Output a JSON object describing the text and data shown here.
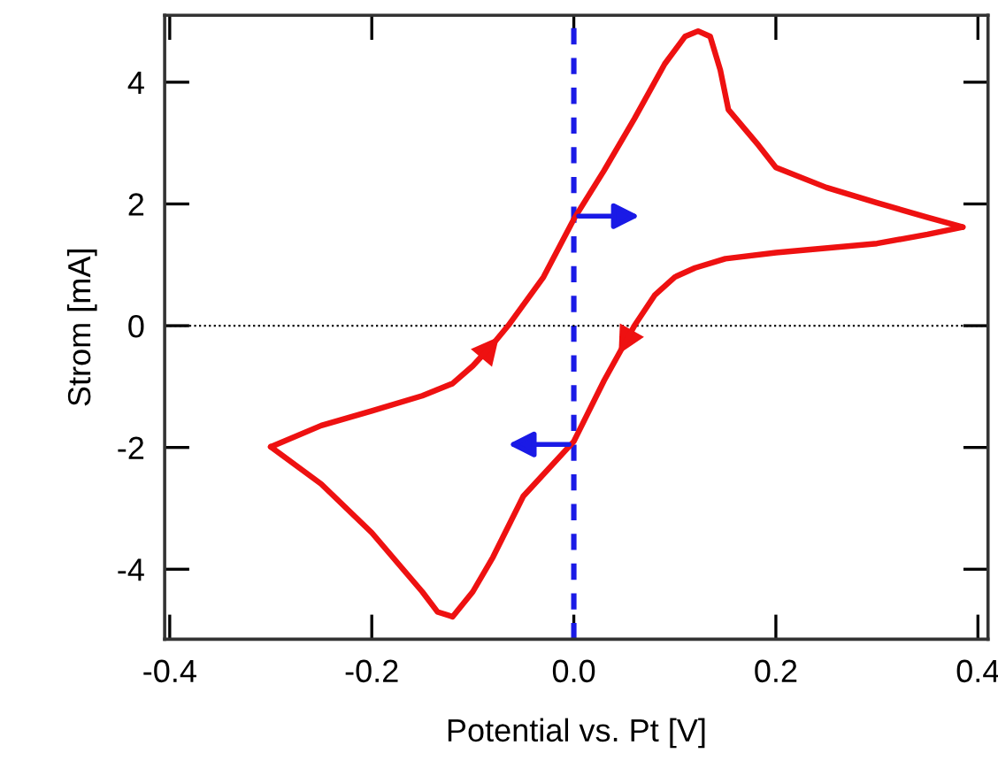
{
  "chart_data": {
    "type": "line",
    "xlabel": "Potential vs. Pt [V]",
    "ylabel": "Strom [mA]",
    "xlim": [
      -0.405,
      0.41
    ],
    "ylim": [
      -5.15,
      5.1
    ],
    "xticks": [
      {
        "value": -0.4,
        "label": "-0.4"
      },
      {
        "value": -0.2,
        "label": "-0.2"
      },
      {
        "value": 0,
        "label": "0.0"
      },
      {
        "value": 0.2,
        "label": "0.2"
      },
      {
        "value": 0.4,
        "label": "0.4"
      }
    ],
    "yticks": [
      {
        "value": -4,
        "label": "-4"
      },
      {
        "value": -2,
        "label": "-2"
      },
      0,
      2,
      4
    ],
    "grid": false,
    "legend": false,
    "marker": "none",
    "line_style": "solid",
    "series": [
      {
        "color": "#ee1111",
        "x": [
          -0.3,
          -0.25,
          -0.2,
          -0.15,
          -0.12,
          -0.1,
          -0.08,
          -0.065,
          -0.03,
          0,
          0.03,
          0.06,
          0.09,
          0.11,
          0.123,
          0.135,
          0.145,
          0.153,
          0.183,
          0.2,
          0.25,
          0.3,
          0.35,
          0.385
        ],
        "values": [
          -1.99,
          -1.64,
          -1.4,
          -1.15,
          -0.95,
          -0.66,
          -0.3,
          0,
          0.8,
          1.75,
          2.55,
          3.4,
          4.3,
          4.75,
          4.84,
          4.75,
          4.2,
          3.55,
          2.96,
          2.6,
          2.27,
          2.02,
          1.78,
          1.62
        ]
      },
      {
        "color": "#ee1111",
        "x": [
          0.385,
          0.35,
          0.3,
          0.2,
          0.15,
          0.12,
          0.1,
          0.08,
          0.06,
          0.03,
          0,
          -0.05,
          -0.08,
          -0.1,
          -0.12,
          -0.135,
          -0.15,
          -0.2,
          -0.25,
          -0.3
        ],
        "values": [
          1.62,
          1.5,
          1.35,
          1.2,
          1.1,
          0.95,
          0.8,
          0.5,
          0,
          -0.9,
          -1.9,
          -2.8,
          -3.8,
          -4.37,
          -4.78,
          -4.7,
          -4.37,
          -3.4,
          -2.6,
          -1.99
        ]
      }
    ],
    "ref_lines": [
      {
        "axis": "x",
        "value": 0,
        "color": "#1a1ae6",
        "line_style": "dashed"
      },
      {
        "axis": "y",
        "value": 0,
        "color": "#000000",
        "line_style": "dotted"
      }
    ]
  }
}
